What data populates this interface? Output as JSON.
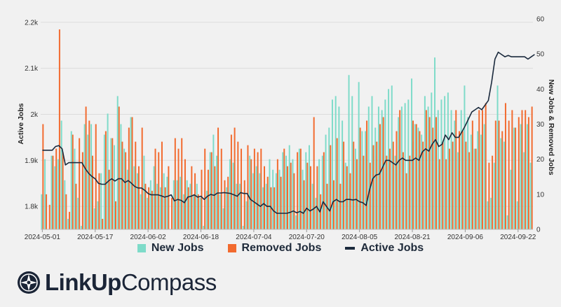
{
  "chart_data": {
    "type": "bar",
    "start_date": "2024-05-01",
    "y_left_label": "Active Jobs",
    "y_right_label": "New Jobs & Removed Jobs",
    "y_left_ticks": [
      "1.8k",
      "1.9k",
      "2k",
      "2.1k",
      "2.2k"
    ],
    "y_right_ticks": [
      "0",
      "10",
      "20",
      "30",
      "40",
      "50",
      "60"
    ],
    "x_ticks": [
      "2024-05-01",
      "2024-05-17",
      "2024-06-02",
      "2024-06-18",
      "2024-07-04",
      "2024-07-20",
      "2024-08-05",
      "2024-08-21",
      "2024-09-06",
      "2024-09-22"
    ],
    "y_left_range": [
      1750,
      2215
    ],
    "y_right_range": [
      0,
      61
    ],
    "series": [
      {
        "name": "New Jobs",
        "color": "#7edbc9",
        "values": [
          10,
          20,
          0,
          21,
          18,
          20,
          31,
          14,
          3,
          28,
          23,
          9,
          1,
          30,
          27,
          30,
          6,
          8,
          16,
          27,
          33,
          26,
          24,
          38,
          30,
          23,
          17,
          32,
          18,
          16,
          10,
          21,
          9,
          14,
          18,
          13,
          12,
          16,
          15,
          0,
          14,
          14,
          15,
          10,
          14,
          13,
          10,
          13,
          9,
          1,
          11,
          22,
          27,
          21,
          10,
          6,
          12,
          20,
          19,
          13,
          13,
          1,
          8,
          21,
          16,
          18,
          16,
          12,
          13,
          20,
          17,
          16,
          17,
          22,
          21,
          24,
          20,
          4,
          23,
          17,
          22,
          24,
          13,
          9,
          20,
          21,
          27,
          29,
          37,
          38,
          35,
          31,
          19,
          44,
          38,
          23,
          42,
          28,
          28,
          35,
          38,
          29,
          35,
          34,
          37,
          40,
          41,
          21,
          32,
          35,
          36,
          37,
          43,
          30,
          29,
          27,
          38,
          35,
          39,
          49,
          34,
          37,
          38,
          39,
          34,
          31,
          22,
          34,
          41,
          32,
          27,
          23,
          28,
          27,
          30,
          8,
          9,
          19,
          41,
          26,
          25,
          4,
          17,
          29,
          8,
          30,
          22,
          30,
          19
        ]
      },
      {
        "name": "Removed Jobs",
        "color": "#f26a2e",
        "values": [
          30,
          10,
          7,
          21,
          23,
          57,
          22,
          10,
          5,
          27,
          13,
          26,
          22,
          35,
          31,
          21,
          30,
          16,
          3,
          28,
          17,
          26,
          8,
          35,
          25,
          22,
          29,
          32,
          25,
          18,
          29,
          13,
          12,
          11,
          23,
          22,
          25,
          12,
          18,
          9,
          26,
          23,
          26,
          20,
          12,
          18,
          16,
          10,
          17,
          23,
          17,
          22,
          18,
          29,
          23,
          14,
          15,
          27,
          29,
          25,
          23,
          14,
          24,
          20,
          23,
          22,
          23,
          18,
          15,
          12,
          12,
          20,
          15,
          23,
          18,
          19,
          16,
          22,
          23,
          14,
          19,
          18,
          32,
          18,
          10,
          22,
          13,
          24,
          14,
          26,
          13,
          25,
          18,
          16,
          25,
          20,
          29,
          21,
          31,
          19,
          24,
          25,
          30,
          32,
          21,
          23,
          25,
          28,
          34,
          22,
          16,
          21,
          31,
          30,
          28,
          25,
          34,
          32,
          29,
          32,
          20,
          25,
          20,
          23,
          25,
          34,
          28,
          28,
          25,
          22,
          31,
          23,
          34,
          34,
          36,
          19,
          21,
          31,
          31,
          28,
          36,
          31,
          34,
          29,
          32,
          34,
          34,
          32,
          35
        ]
      },
      {
        "name": "Active Jobs",
        "color": "#1b2a3d",
        "values": [
          1922,
          1922,
          1922,
          1922,
          1930,
          1932,
          1925,
          1890,
          1895,
          1895,
          1895,
          1895,
          1895,
          1882,
          1872,
          1865,
          1860,
          1850,
          1848,
          1848,
          1855,
          1860,
          1855,
          1860,
          1860,
          1852,
          1856,
          1850,
          1843,
          1840,
          1840,
          1835,
          1828,
          1825,
          1825,
          1825,
          1823,
          1820,
          1822,
          1825,
          1812,
          1815,
          1813,
          1808,
          1820,
          1822,
          1825,
          1820,
          1822,
          1815,
          1822,
          1826,
          1824,
          1829,
          1829,
          1830,
          1829,
          1828,
          1825,
          1822,
          1830,
          1828,
          1828,
          1815,
          1810,
          1805,
          1800,
          1806,
          1800,
          1800,
          1790,
          1785,
          1785,
          1785,
          1785,
          1787,
          1790,
          1786,
          1789,
          1785,
          1796,
          1790,
          1794,
          1800,
          1788,
          1810,
          1800,
          1790,
          1810,
          1815,
          1810,
          1810,
          1815,
          1815,
          1814,
          1815,
          1810,
          1808,
          1802,
          1835,
          1860,
          1868,
          1870,
          1885,
          1900,
          1900,
          1895,
          1890,
          1900,
          1905,
          1900,
          1900,
          1900,
          1905,
          1900,
          1918,
          1925,
          1920,
          1935,
          1945,
          1930,
          1935,
          1955,
          1945,
          1960,
          1950,
          1950,
          1962,
          1975,
          1990,
          2005,
          2010,
          2015,
          2010,
          2020,
          2030,
          2070,
          2120,
          2135,
          2130,
          2125,
          2128,
          2125,
          2125,
          2125,
          2125,
          2125,
          2120,
          2125,
          2130
        ]
      }
    ]
  },
  "legend": {
    "new_jobs": "New Jobs",
    "removed_jobs": "Removed Jobs",
    "active_jobs": "Active Jobs"
  },
  "logo": {
    "word_bold": "LinkUp",
    "word_light": "Compass"
  }
}
